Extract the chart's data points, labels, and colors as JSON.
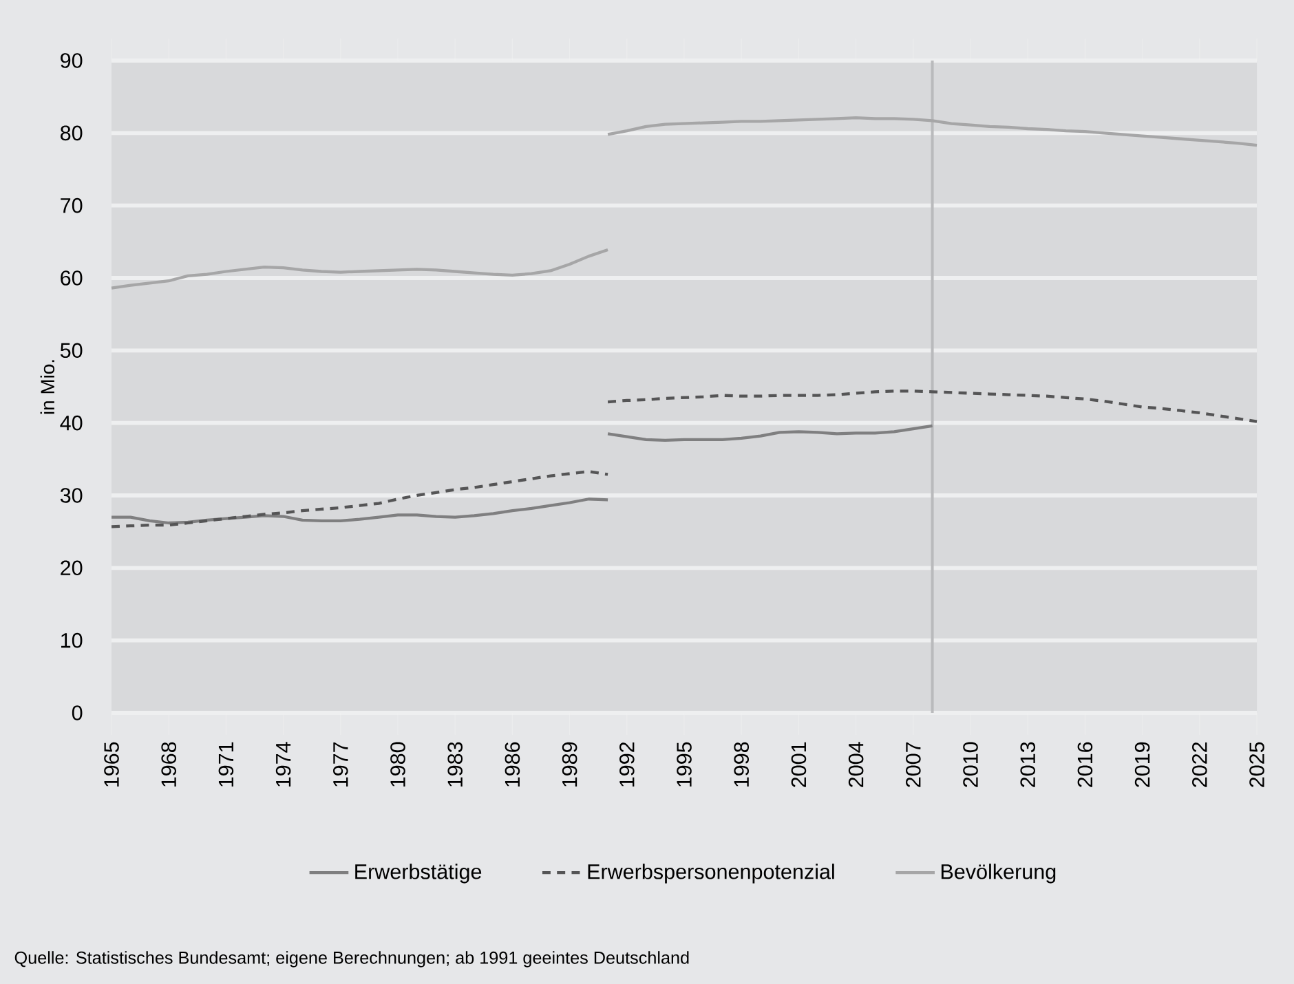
{
  "chart_data": {
    "type": "line",
    "ylabel": "in Mio.",
    "xlim": [
      1965,
      2025
    ],
    "ylim": [
      0,
      90
    ],
    "xticks": [
      1965,
      1968,
      1971,
      1974,
      1977,
      1980,
      1983,
      1986,
      1989,
      1992,
      1995,
      1998,
      2001,
      2004,
      2007,
      2010,
      2013,
      2016,
      2019,
      2022,
      2025
    ],
    "yticks": [
      0,
      10,
      20,
      30,
      40,
      50,
      60,
      70,
      80,
      90
    ],
    "grid": "y",
    "legend": "bottom",
    "marker": "none",
    "ref_lines": [
      {
        "axis": "x",
        "value": 2008,
        "color": "#b9babc"
      }
    ],
    "series": [
      {
        "name": "Erwerbstätige",
        "color": "#7f7f80",
        "line_style": "solid",
        "x": [
          1991,
          1992,
          1993,
          1994,
          1995,
          1996,
          1997,
          1998,
          1999,
          2000,
          2001,
          2002,
          2003,
          2004,
          2005,
          2006,
          2007,
          2008
        ],
        "values": [
          38.5,
          38.1,
          37.7,
          37.6,
          37.7,
          37.7,
          37.7,
          37.9,
          38.2,
          38.7,
          38.8,
          38.7,
          38.5,
          38.6,
          38.6,
          38.8,
          39.2,
          39.6
        ]
      },
      {
        "name": "Erwerbspersonenpotenzial",
        "color": "#555556",
        "line_style": "dashed",
        "x": [
          1991,
          1992,
          1993,
          1994,
          1995,
          1996,
          1997,
          1998,
          1999,
          2000,
          2001,
          2002,
          2003,
          2004,
          2005,
          2006,
          2007,
          2008,
          2009,
          2010,
          2011,
          2012,
          2013,
          2014,
          2015,
          2016,
          2017,
          2018,
          2019,
          2020,
          2021,
          2022,
          2023,
          2024,
          2025
        ],
        "values": [
          42.9,
          43.1,
          43.2,
          43.4,
          43.5,
          43.6,
          43.8,
          43.7,
          43.7,
          43.8,
          43.8,
          43.8,
          43.9,
          44.1,
          44.3,
          44.4,
          44.4,
          44.3,
          44.2,
          44.1,
          44.0,
          43.9,
          43.8,
          43.7,
          43.5,
          43.3,
          43.0,
          42.6,
          42.2,
          42.0,
          41.7,
          41.4,
          41.0,
          40.6,
          40.2
        ]
      },
      {
        "name": "Bevölkerung",
        "color": "#a6a6a7",
        "line_style": "solid",
        "x": [
          1991,
          1992,
          1993,
          1994,
          1995,
          1996,
          1997,
          1998,
          1999,
          2000,
          2001,
          2002,
          2003,
          2004,
          2005,
          2006,
          2007,
          2008,
          2009,
          2010,
          2011,
          2012,
          2013,
          2014,
          2015,
          2016,
          2017,
          2018,
          2019,
          2020,
          2021,
          2022,
          2023,
          2024,
          2025
        ],
        "values": [
          79.8,
          80.3,
          80.9,
          81.2,
          81.3,
          81.4,
          81.5,
          81.6,
          81.6,
          81.7,
          81.8,
          81.9,
          82.0,
          82.1,
          82.0,
          82.0,
          81.9,
          81.7,
          81.3,
          81.1,
          80.9,
          80.8,
          80.6,
          80.5,
          80.3,
          80.2,
          80.0,
          79.8,
          79.6,
          79.4,
          79.2,
          79.0,
          78.8,
          78.6,
          78.3
        ]
      },
      {
        "color": "#7f7f80",
        "line_style": "solid",
        "x": [
          1965,
          1966,
          1967,
          1968,
          1969,
          1970,
          1971,
          1972,
          1973,
          1974,
          1975,
          1976,
          1977,
          1978,
          1979,
          1980,
          1981,
          1982,
          1983,
          1984,
          1985,
          1986,
          1987,
          1988,
          1989,
          1990,
          1991
        ],
        "values": [
          27.0,
          27.0,
          26.5,
          26.2,
          26.3,
          26.6,
          26.8,
          27.0,
          27.2,
          27.1,
          26.6,
          26.5,
          26.5,
          26.7,
          27.0,
          27.3,
          27.3,
          27.1,
          27.0,
          27.2,
          27.5,
          27.9,
          28.2,
          28.6,
          29.0,
          29.5,
          29.4
        ]
      },
      {
        "color": "#555556",
        "line_style": "dashed",
        "x": [
          1965,
          1966,
          1967,
          1968,
          1969,
          1970,
          1971,
          1972,
          1973,
          1974,
          1975,
          1976,
          1977,
          1978,
          1979,
          1980,
          1981,
          1982,
          1983,
          1984,
          1985,
          1986,
          1987,
          1988,
          1989,
          1990,
          1991
        ],
        "values": [
          25.7,
          25.8,
          25.9,
          25.9,
          26.2,
          26.5,
          26.8,
          27.1,
          27.4,
          27.6,
          27.9,
          28.1,
          28.3,
          28.6,
          28.9,
          29.5,
          30.0,
          30.4,
          30.8,
          31.1,
          31.5,
          31.9,
          32.3,
          32.7,
          33.0,
          33.3,
          32.9
        ]
      },
      {
        "color": "#a6a6a7",
        "line_style": "solid",
        "x": [
          1965,
          1966,
          1967,
          1968,
          1969,
          1970,
          1971,
          1972,
          1973,
          1974,
          1975,
          1976,
          1977,
          1978,
          1979,
          1980,
          1981,
          1982,
          1983,
          1984,
          1985,
          1986,
          1987,
          1988,
          1989,
          1990,
          1991
        ],
        "values": [
          58.6,
          59.0,
          59.3,
          59.6,
          60.3,
          60.5,
          60.9,
          61.2,
          61.5,
          61.4,
          61.1,
          60.9,
          60.8,
          60.9,
          61.0,
          61.1,
          61.2,
          61.1,
          60.9,
          60.7,
          60.5,
          60.4,
          60.6,
          61.0,
          61.9,
          63.0,
          63.9
        ]
      }
    ],
    "annotations": [
      "Quelle: Statistisches Bundesamt; eigene Berechnungen; ab 1991 geeintes Deutschland"
    ]
  }
}
